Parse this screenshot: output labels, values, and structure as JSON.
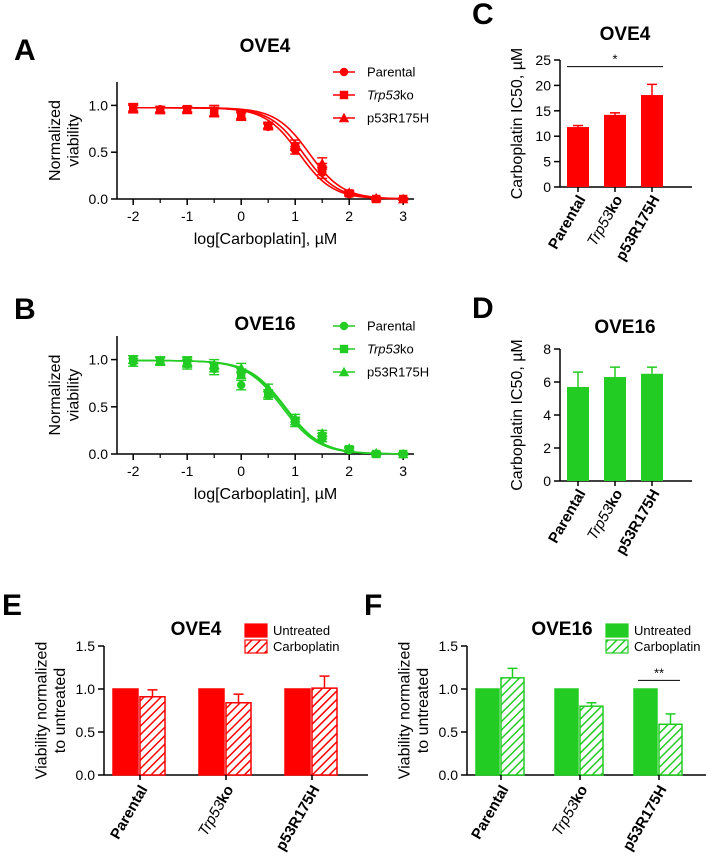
{
  "panels": {
    "A": {
      "letter": "A"
    },
    "B": {
      "letter": "B"
    },
    "C": {
      "letter": "C"
    },
    "D": {
      "letter": "D"
    },
    "E": {
      "letter": "E"
    },
    "F": {
      "letter": "F"
    }
  },
  "chart_data": [
    {
      "id": "A",
      "type": "line",
      "title": "OVE4",
      "xlabel": "log[Carboplatin], µM",
      "ylabel": "Normalized viability",
      "xlim": [
        -2.3,
        3.2
      ],
      "ylim": [
        0,
        1.25
      ],
      "xticks": [
        -2,
        -1,
        0,
        1,
        2,
        3
      ],
      "yticks": [
        0.0,
        0.5,
        1.0
      ],
      "ytick_labels": [
        "0.0",
        "0.5",
        "1.0"
      ],
      "color": "#ff0000",
      "x": [
        -2,
        -1.5,
        -1,
        -0.5,
        0,
        0.5,
        1,
        1.5,
        2,
        2.5,
        3
      ],
      "series": [
        {
          "name": "Parental",
          "marker": "circle",
          "logIC50": 1.07,
          "hill": 1.4,
          "top": 0.975,
          "values": [
            0.98,
            0.96,
            0.96,
            0.94,
            0.88,
            0.77,
            0.52,
            0.28,
            0.05,
            0.0,
            0.0
          ],
          "errors": [
            0.04,
            0.03,
            0.03,
            0.06,
            0.04,
            0.03,
            0.04,
            0.06,
            0.02,
            0.01,
            0.01
          ]
        },
        {
          "name": "Trp53ko",
          "name_italic": "Trp53",
          "name_rest": "ko",
          "marker": "square",
          "logIC50": 1.15,
          "hill": 1.4,
          "top": 0.975,
          "values": [
            0.97,
            0.95,
            0.96,
            0.93,
            0.89,
            0.78,
            0.56,
            0.32,
            0.06,
            0.0,
            0.0
          ],
          "errors": [
            0.04,
            0.03,
            0.03,
            0.05,
            0.04,
            0.03,
            0.04,
            0.06,
            0.02,
            0.01,
            0.01
          ]
        },
        {
          "name": "p53R175H",
          "marker": "triangle",
          "logIC50": 1.26,
          "hill": 1.4,
          "top": 0.975,
          "values": [
            0.96,
            0.95,
            0.95,
            0.93,
            0.9,
            0.79,
            0.58,
            0.38,
            0.07,
            0.01,
            0.0
          ],
          "errors": [
            0.04,
            0.03,
            0.03,
            0.05,
            0.04,
            0.03,
            0.05,
            0.06,
            0.02,
            0.01,
            0.01
          ]
        }
      ]
    },
    {
      "id": "B",
      "type": "line",
      "title": "OVE16",
      "xlabel": "log[Carboplatin], µM",
      "ylabel": "Normalized viability",
      "xlim": [
        -2.3,
        3.2
      ],
      "ylim": [
        0,
        1.25
      ],
      "xticks": [
        -2,
        -1,
        0,
        1,
        2,
        3
      ],
      "yticks": [
        0.0,
        0.5,
        1.0
      ],
      "ytick_labels": [
        "0.0",
        "0.5",
        "1.0"
      ],
      "color": "#22cc22",
      "x": [
        -2,
        -1.5,
        -1,
        -0.5,
        0,
        0.5,
        1,
        1.5,
        2,
        2.5,
        3
      ],
      "series": [
        {
          "name": "Parental",
          "marker": "circle",
          "logIC50": 0.76,
          "hill": 1.3,
          "top": 0.99,
          "values": [
            0.97,
            0.98,
            0.95,
            0.9,
            0.73,
            0.62,
            0.33,
            0.16,
            0.04,
            0.0,
            0.0
          ],
          "errors": [
            0.04,
            0.04,
            0.05,
            0.06,
            0.05,
            0.04,
            0.04,
            0.03,
            0.02,
            0.01,
            0.01
          ]
        },
        {
          "name": "Trp53ko",
          "name_italic": "Trp53",
          "name_rest": "ko",
          "marker": "square",
          "logIC50": 0.8,
          "hill": 1.3,
          "top": 0.99,
          "values": [
            1.0,
            0.98,
            0.97,
            0.92,
            0.85,
            0.64,
            0.35,
            0.19,
            0.05,
            0.0,
            0.0
          ],
          "errors": [
            0.04,
            0.04,
            0.05,
            0.05,
            0.05,
            0.04,
            0.04,
            0.03,
            0.02,
            0.01,
            0.01
          ]
        },
        {
          "name": "p53R175H",
          "marker": "triangle",
          "logIC50": 0.82,
          "hill": 1.3,
          "top": 0.99,
          "values": [
            1.0,
            0.99,
            0.98,
            0.95,
            0.91,
            0.7,
            0.38,
            0.22,
            0.06,
            0.01,
            0.0
          ],
          "errors": [
            0.04,
            0.04,
            0.05,
            0.05,
            0.05,
            0.04,
            0.04,
            0.03,
            0.02,
            0.01,
            0.01
          ]
        }
      ]
    },
    {
      "id": "C",
      "type": "bar",
      "title": "OVE4",
      "ylabel": "Carboplatin IC50, µM",
      "categories": [
        "Parental",
        "Trp53ko",
        "p53R175H"
      ],
      "values": [
        11.8,
        14.2,
        18.1
      ],
      "errors": [
        0.3,
        0.4,
        2.1
      ],
      "ylim": [
        0,
        25
      ],
      "yticks": [
        0,
        5,
        10,
        15,
        20,
        25
      ],
      "ytick_labels": [
        "0",
        "5",
        "10",
        "15",
        "20",
        "25"
      ],
      "color": "#ff0000",
      "significance": {
        "from": 0,
        "to": 2,
        "label": "*",
        "y": 23.7
      }
    },
    {
      "id": "D",
      "type": "bar",
      "title": "OVE16",
      "ylabel": "Carboplatin IC50, µM",
      "categories": [
        "Parental",
        "Trp53ko",
        "p53R175H"
      ],
      "values": [
        5.7,
        6.3,
        6.5
      ],
      "errors": [
        0.9,
        0.6,
        0.4
      ],
      "ylim": [
        0,
        8
      ],
      "yticks": [
        0,
        2,
        4,
        6,
        8
      ],
      "ytick_labels": [
        "0",
        "2",
        "4",
        "6",
        "8"
      ],
      "color": "#22cc22"
    },
    {
      "id": "E",
      "type": "bar",
      "title": "OVE4",
      "ylabel": "Viability normalized to untreated",
      "categories": [
        "Parental",
        "Trp53ko",
        "p53R175H"
      ],
      "ylim": [
        0,
        1.5
      ],
      "yticks": [
        0.0,
        0.5,
        1.0,
        1.5
      ],
      "ytick_labels": [
        "0.0",
        "0.5",
        "1.0",
        "1.5"
      ],
      "color": "#ff0000",
      "series": [
        {
          "name": "Untreated",
          "pattern": "solid",
          "values": [
            1.0,
            1.0,
            1.0
          ],
          "errors": [
            0,
            0,
            0
          ]
        },
        {
          "name": "Carboplatin",
          "pattern": "hatched",
          "values": [
            0.91,
            0.84,
            1.01
          ],
          "errors": [
            0.08,
            0.1,
            0.14
          ]
        }
      ]
    },
    {
      "id": "F",
      "type": "bar",
      "title": "OVE16",
      "ylabel": "Viability normalized to untreated",
      "categories": [
        "Parental",
        "Trp53ko",
        "p53R175H"
      ],
      "ylim": [
        0,
        1.5
      ],
      "yticks": [
        0.0,
        0.5,
        1.0,
        1.5
      ],
      "ytick_labels": [
        "0.0",
        "0.5",
        "1.0",
        "1.5"
      ],
      "color": "#22cc22",
      "series": [
        {
          "name": "Untreated",
          "pattern": "solid",
          "values": [
            1.0,
            1.0,
            1.0
          ],
          "errors": [
            0,
            0,
            0
          ]
        },
        {
          "name": "Carboplatin",
          "pattern": "hatched",
          "values": [
            1.13,
            0.8,
            0.59
          ],
          "errors": [
            0.11,
            0.04,
            0.12
          ]
        }
      ],
      "significance": {
        "category": 2,
        "label": "**",
        "y": 1.1
      }
    }
  ]
}
